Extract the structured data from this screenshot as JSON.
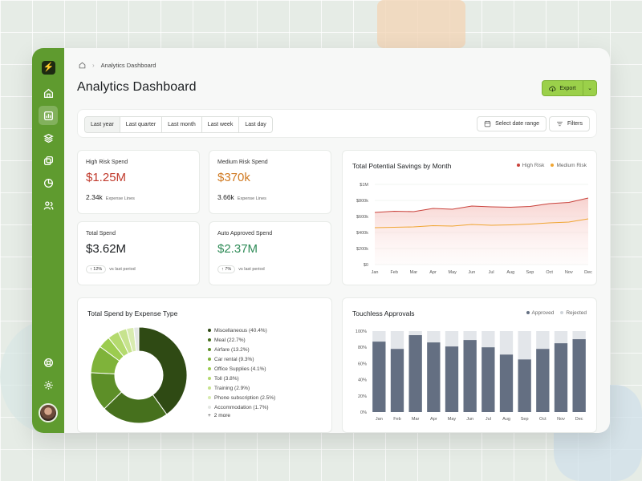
{
  "breadcrumb": {
    "current": "Analytics Dashboard"
  },
  "page": {
    "title": "Analytics Dashboard"
  },
  "export": {
    "label": "Export"
  },
  "filters": {
    "ranges": [
      "Last year",
      "Last quarter",
      "Last month",
      "Last week",
      "Last day"
    ],
    "active_range": "Last year",
    "date_range_label": "Select date range",
    "filters_label": "Filters"
  },
  "kpis": {
    "high_risk": {
      "label": "High Risk Spend",
      "value": "$1.25M",
      "sub_value": "2.34k",
      "sub_label": "Expense Lines",
      "color": "#c0392b"
    },
    "medium_risk": {
      "label": "Medium Risk Spend",
      "value": "$370k",
      "sub_value": "3.66k",
      "sub_label": "Expense Lines",
      "color": "#d07a22"
    },
    "total": {
      "label": "Total Spend",
      "value": "$3.62M",
      "delta": "12%",
      "delta_label": "vs last period",
      "color": "#1c1f22"
    },
    "auto_approved": {
      "label": "Auto Approved Spend",
      "value": "$2.37M",
      "delta": "7%",
      "delta_label": "vs last period",
      "color": "#2e8b57"
    }
  },
  "savings": {
    "title": "Total Potential Savings by Month",
    "legend_high": "High Risk",
    "legend_medium": "Medium Risk",
    "color_high": "#c9423b",
    "color_medium": "#f0a531"
  },
  "expense_type": {
    "title": "Total Spend by Expense Type",
    "more_label": "2 more"
  },
  "approvals": {
    "title": "Touchless Approvals",
    "legend_approved": "Approved",
    "legend_rejected": "Rejected"
  },
  "chart_data": [
    {
      "type": "area",
      "title": "Total Potential Savings by Month",
      "categories": [
        "Jan",
        "Feb",
        "Mar",
        "Apr",
        "May",
        "Jun",
        "Jul",
        "Aug",
        "Sep",
        "Oct",
        "Nov",
        "Dec"
      ],
      "y_ticks": [
        "$0",
        "$200k",
        "$400k",
        "$600k",
        "$800k",
        "$1M"
      ],
      "ylim": [
        0,
        1000000
      ],
      "series": [
        {
          "name": "High Risk",
          "values": [
            650000,
            665000,
            660000,
            700000,
            690000,
            730000,
            720000,
            715000,
            725000,
            760000,
            775000,
            830000
          ]
        },
        {
          "name": "Medium Risk",
          "values": [
            460000,
            465000,
            470000,
            485000,
            480000,
            500000,
            490000,
            495000,
            505000,
            520000,
            530000,
            570000
          ]
        }
      ],
      "legend": "top-right",
      "grid": true
    },
    {
      "type": "pie",
      "title": "Total Spend by Expense Type",
      "donut": true,
      "slices": [
        {
          "label": "Miscellaneous (40.4%)",
          "value": 40.4,
          "color": "#2f4a14"
        },
        {
          "label": "Meal (22.7%)",
          "value": 22.7,
          "color": "#46701d"
        },
        {
          "label": "Airfare (13.2%)",
          "value": 13.2,
          "color": "#5d8f28"
        },
        {
          "label": "Car rental (9.3%)",
          "value": 9.3,
          "color": "#7fb33a"
        },
        {
          "label": "Office Supplies (4.1%)",
          "value": 4.1,
          "color": "#9ccc4f"
        },
        {
          "label": "Toll (3.8%)",
          "value": 3.8,
          "color": "#b4da6e"
        },
        {
          "label": "Training (2.9%)",
          "value": 2.9,
          "color": "#c7e38e"
        },
        {
          "label": "Phone subscription (2.5%)",
          "value": 2.5,
          "color": "#d8ebb0"
        },
        {
          "label": "Accommodation (1.7%)",
          "value": 1.7,
          "color": "#e3e6e3"
        }
      ]
    },
    {
      "type": "bar",
      "title": "Touchless Approvals",
      "categories": [
        "Jan",
        "Feb",
        "Mar",
        "Apr",
        "May",
        "Jun",
        "Jul",
        "Aug",
        "Sep",
        "Oct",
        "Nov",
        "Dec"
      ],
      "y_ticks": [
        "0%",
        "20%",
        "40%",
        "60%",
        "80%",
        "100%"
      ],
      "ylim": [
        0,
        100
      ],
      "stacked": true,
      "series": [
        {
          "name": "Approved",
          "values": [
            87,
            78,
            95,
            86,
            81,
            89,
            80,
            71,
            65,
            78,
            85,
            90
          ],
          "color": "#646f82"
        },
        {
          "name": "Rejected",
          "values": [
            13,
            22,
            5,
            14,
            19,
            11,
            20,
            29,
            35,
            22,
            15,
            10
          ],
          "color": "#e3e6ea"
        }
      ],
      "legend": "top-right"
    }
  ]
}
